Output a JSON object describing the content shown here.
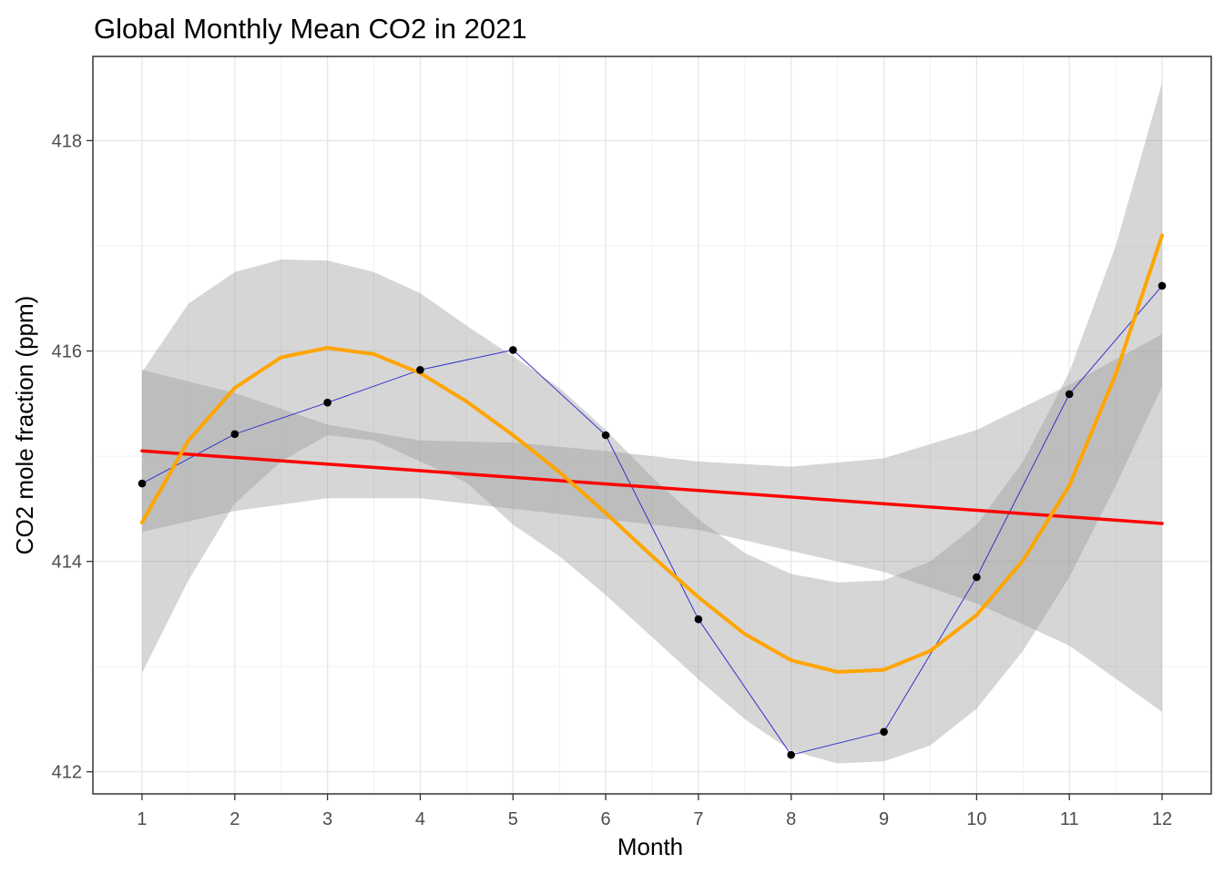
{
  "chart_data": {
    "type": "line",
    "title": "Global Monthly Mean CO2 in 2021",
    "xlabel": "Month",
    "ylabel": "CO2 mole fraction (ppm)",
    "x_ticks": [
      "1",
      "2",
      "3",
      "4",
      "5",
      "6",
      "7",
      "8",
      "9",
      "10",
      "11",
      "12"
    ],
    "y_ticks": [
      "412",
      "414",
      "416",
      "418"
    ],
    "xlim": [
      0.47,
      12.53
    ],
    "ylim": [
      411.79,
      418.8
    ],
    "grid": true,
    "series": [
      {
        "kind": "observed",
        "color": "#3333cc",
        "point_color": "#000000",
        "x": [
          1,
          2,
          3,
          4,
          5,
          6,
          7,
          8,
          9,
          10,
          11,
          12
        ],
        "y": [
          414.74,
          415.21,
          415.51,
          415.82,
          416.01,
          415.2,
          413.45,
          412.16,
          412.38,
          413.85,
          415.59,
          416.62
        ]
      },
      {
        "kind": "linear-fit",
        "color": "#ff0000",
        "x": [
          1,
          12
        ],
        "y": [
          415.05,
          414.36
        ]
      },
      {
        "kind": "polynomial-fit",
        "color": "#ffa500",
        "x": [
          1,
          1.5,
          2,
          2.5,
          3,
          3.5,
          4,
          4.5,
          5,
          5.5,
          6,
          6.5,
          7,
          7.5,
          8,
          8.5,
          9,
          9.5,
          10,
          10.5,
          11,
          11.5,
          12
        ],
        "y": [
          414.37,
          415.15,
          415.65,
          415.94,
          416.03,
          415.97,
          415.79,
          415.52,
          415.2,
          414.85,
          414.46,
          414.05,
          413.66,
          413.31,
          413.06,
          412.95,
          412.97,
          413.15,
          413.49,
          414.01,
          414.72,
          415.78,
          417.1
        ]
      }
    ],
    "confidence_bands": [
      {
        "kind": "linear-fit-band",
        "color": "#999999",
        "opacity": 0.4,
        "x": [
          1,
          2,
          3,
          4,
          5,
          6,
          7,
          8,
          9,
          10,
          11,
          12
        ],
        "lower": [
          414.28,
          414.48,
          414.6,
          414.6,
          414.5,
          414.4,
          414.3,
          414.1,
          413.9,
          413.6,
          413.2,
          412.57
        ],
        "upper": [
          415.82,
          415.6,
          415.3,
          415.15,
          415.13,
          415.05,
          414.95,
          414.9,
          414.98,
          415.25,
          415.68,
          416.16
        ]
      },
      {
        "kind": "polynomial-fit-band",
        "color": "#999999",
        "opacity": 0.4,
        "x": [
          1,
          1.5,
          2,
          2.5,
          3,
          3.5,
          4,
          4.5,
          5,
          5.5,
          6,
          6.5,
          7,
          7.5,
          8,
          8.5,
          9,
          9.5,
          10,
          10.5,
          11,
          11.5,
          12
        ],
        "lower": [
          412.94,
          413.82,
          414.55,
          414.95,
          415.2,
          415.15,
          414.95,
          414.75,
          414.35,
          414.05,
          413.68,
          413.28,
          412.88,
          412.5,
          412.2,
          412.08,
          412.1,
          412.25,
          412.6,
          413.15,
          413.85,
          414.72,
          415.66
        ],
        "upper": [
          415.8,
          416.45,
          416.75,
          416.87,
          416.86,
          416.75,
          416.55,
          416.24,
          415.95,
          415.65,
          415.25,
          414.8,
          414.4,
          414.08,
          413.88,
          413.8,
          413.82,
          414.0,
          414.35,
          414.95,
          415.8,
          417.0,
          418.55
        ]
      }
    ]
  }
}
